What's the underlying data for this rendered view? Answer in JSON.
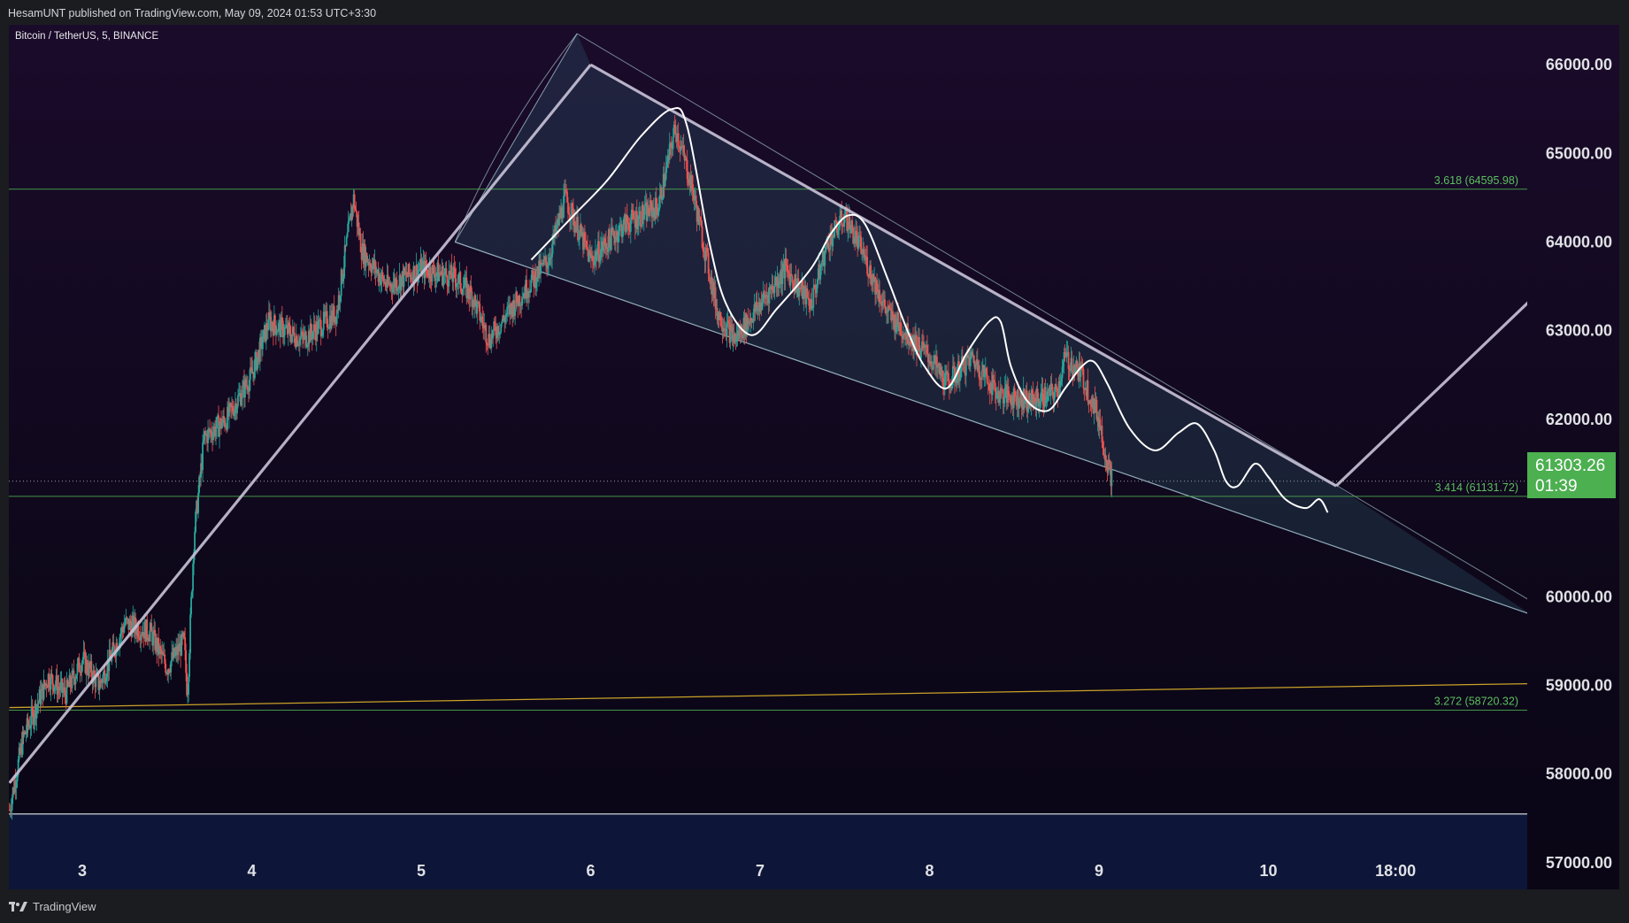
{
  "header": {
    "published": "HesamUNT published on TradingView.com, May 09, 2024 01:53 UTC+3:30"
  },
  "symbol": "Bitcoin / TetherUS, 5, BINANCE",
  "price_tag": {
    "price": "61303.26",
    "countdown": "01:39"
  },
  "footer": {
    "brand": "TradingView"
  },
  "colors": {
    "up": "#26a69a",
    "down": "#ef5350",
    "fib": "#4caf50",
    "support": "#c9a227",
    "trend": "#c9c3d8",
    "channel": "#b0d4de"
  },
  "chart_data": {
    "type": "candlestick",
    "title": "",
    "x_ticks": [
      "3",
      "4",
      "5",
      "6",
      "7",
      "8",
      "9",
      "10",
      "18:00"
    ],
    "y_ticks": [
      66000,
      65000,
      64000,
      63000,
      62000,
      60000,
      59000,
      58000,
      57000
    ],
    "y_tick_labels": [
      "66000.00",
      "65000.00",
      "64000.00",
      "63000.00",
      "62000.00",
      "60000.00",
      "59000.00",
      "58000.00",
      "57000.00"
    ],
    "ylim": [
      56700,
      66450
    ],
    "xlim": [
      2.57,
      11.55
    ],
    "fib_levels": [
      {
        "label": "3.618 (64595.98)",
        "value": 64595.98
      },
      {
        "label": "3.414 (61131.72)",
        "value": 61131.72
      },
      {
        "label": "3.272 (58720.32)",
        "value": 58720.32
      }
    ],
    "current_price": 61303.26,
    "price_path": [
      [
        2.57,
        57600
      ],
      [
        2.65,
        58400
      ],
      [
        2.8,
        59100
      ],
      [
        2.9,
        58900
      ],
      [
        3.0,
        59300
      ],
      [
        3.1,
        59000
      ],
      [
        3.25,
        59700
      ],
      [
        3.4,
        59600
      ],
      [
        3.5,
        59200
      ],
      [
        3.6,
        59500
      ],
      [
        3.62,
        58900
      ],
      [
        3.66,
        60700
      ],
      [
        3.72,
        61800
      ],
      [
        3.85,
        62000
      ],
      [
        4.0,
        62500
      ],
      [
        4.1,
        63100
      ],
      [
        4.3,
        62900
      ],
      [
        4.5,
        63200
      ],
      [
        4.6,
        64500
      ],
      [
        4.65,
        63900
      ],
      [
        4.8,
        63500
      ],
      [
        5.0,
        63700
      ],
      [
        5.2,
        63600
      ],
      [
        5.3,
        63400
      ],
      [
        5.4,
        62900
      ],
      [
        5.55,
        63300
      ],
      [
        5.75,
        63800
      ],
      [
        5.85,
        64500
      ],
      [
        6.0,
        63800
      ],
      [
        6.2,
        64200
      ],
      [
        6.4,
        64400
      ],
      [
        6.5,
        65300
      ],
      [
        6.6,
        64600
      ],
      [
        6.75,
        63200
      ],
      [
        6.85,
        62900
      ],
      [
        7.0,
        63300
      ],
      [
        7.15,
        63700
      ],
      [
        7.3,
        63300
      ],
      [
        7.4,
        64000
      ],
      [
        7.5,
        64300
      ],
      [
        7.6,
        63900
      ],
      [
        7.75,
        63200
      ],
      [
        7.9,
        62900
      ],
      [
        8.0,
        62700
      ],
      [
        8.1,
        62400
      ],
      [
        8.25,
        62700
      ],
      [
        8.4,
        62300
      ],
      [
        8.6,
        62200
      ],
      [
        8.75,
        62300
      ],
      [
        8.8,
        62700
      ],
      [
        8.9,
        62500
      ],
      [
        9.0,
        62000
      ],
      [
        9.05,
        61500
      ],
      [
        9.08,
        61300
      ]
    ],
    "trendline_up": [
      [
        2.57,
        57900
      ],
      [
        6.0,
        66000
      ]
    ],
    "channel_upper": [
      [
        6.0,
        66000
      ],
      [
        10.4,
        61250
      ]
    ],
    "projection": [
      [
        10.4,
        61250
      ],
      [
        11.55,
        63350
      ]
    ],
    "channel_lower": [
      [
        5.2,
        64000
      ],
      [
        11.55,
        59800
      ]
    ],
    "forecast_wave": [
      [
        5.65,
        63800
      ],
      [
        5.9,
        64300
      ],
      [
        6.1,
        64700
      ],
      [
        6.3,
        65200
      ],
      [
        6.48,
        65500
      ],
      [
        6.57,
        65300
      ],
      [
        6.7,
        64000
      ],
      [
        6.8,
        63300
      ],
      [
        6.95,
        62950
      ],
      [
        7.1,
        63250
      ],
      [
        7.3,
        63700
      ],
      [
        7.42,
        64100
      ],
      [
        7.52,
        64300
      ],
      [
        7.62,
        64200
      ],
      [
        7.75,
        63600
      ],
      [
        7.87,
        63000
      ],
      [
        7.97,
        62600
      ],
      [
        8.1,
        62350
      ],
      [
        8.22,
        62750
      ],
      [
        8.35,
        63100
      ],
      [
        8.42,
        63100
      ],
      [
        8.48,
        62600
      ],
      [
        8.58,
        62200
      ],
      [
        8.7,
        62100
      ],
      [
        8.8,
        62350
      ],
      [
        8.9,
        62600
      ],
      [
        8.97,
        62650
      ],
      [
        9.05,
        62400
      ],
      [
        9.18,
        61900
      ],
      [
        9.33,
        61650
      ],
      [
        9.47,
        61850
      ],
      [
        9.58,
        61950
      ],
      [
        9.68,
        61650
      ],
      [
        9.75,
        61300
      ],
      [
        9.82,
        61250
      ],
      [
        9.92,
        61500
      ],
      [
        10.0,
        61350
      ],
      [
        10.1,
        61100
      ],
      [
        10.22,
        61000
      ],
      [
        10.3,
        61100
      ],
      [
        10.35,
        60950
      ]
    ],
    "support_line": [
      [
        2.57,
        58750
      ],
      [
        11.55,
        59020
      ]
    ],
    "zone": {
      "top": 57550,
      "bottom": 56700
    },
    "triangle_tip": [
      5.92,
      66350
    ]
  }
}
